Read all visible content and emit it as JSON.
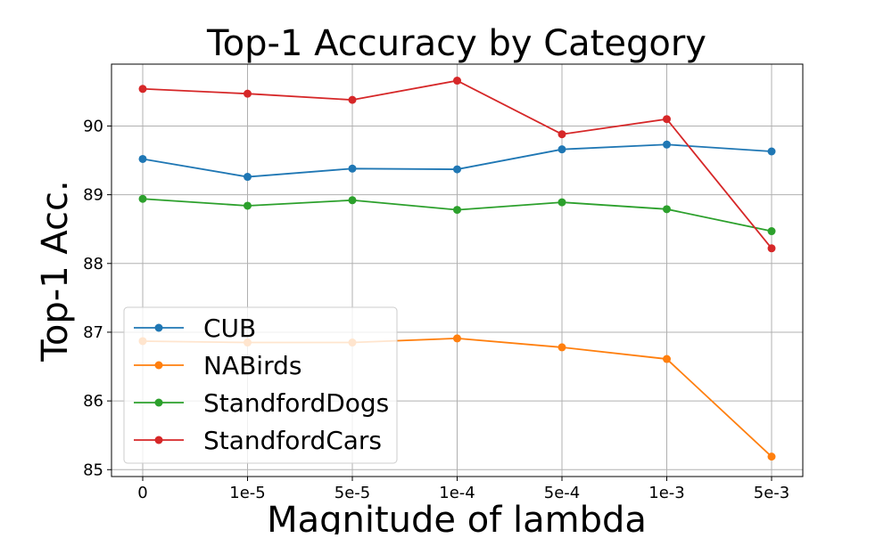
{
  "chart_data": {
    "type": "line",
    "title": "Top-1 Accuracy by Category",
    "xlabel": "Magnitude of lambda",
    "ylabel": "Top-1 Acc.",
    "categories": [
      "0",
      "1e-5",
      "5e-5",
      "1e-4",
      "5e-4",
      "1e-3",
      "5e-3"
    ],
    "yticks": [
      85,
      86,
      87,
      88,
      89,
      90
    ],
    "ylim": [
      84.9,
      90.9
    ],
    "grid": true,
    "legend_position": "lower-left",
    "series": [
      {
        "name": "CUB",
        "color": "#1f77b4",
        "values": [
          89.52,
          89.26,
          89.38,
          89.37,
          89.66,
          89.73,
          89.63
        ]
      },
      {
        "name": "NABirds",
        "color": "#ff7f0e",
        "values": [
          86.87,
          86.85,
          86.85,
          86.91,
          86.78,
          86.61,
          85.19
        ]
      },
      {
        "name": "StandfordDogs",
        "color": "#2ca02c",
        "values": [
          88.94,
          88.84,
          88.92,
          88.78,
          88.89,
          88.79,
          88.47
        ]
      },
      {
        "name": "StandfordCars",
        "color": "#d62728",
        "values": [
          90.54,
          90.47,
          90.38,
          90.66,
          89.88,
          90.1,
          88.22
        ]
      }
    ]
  }
}
